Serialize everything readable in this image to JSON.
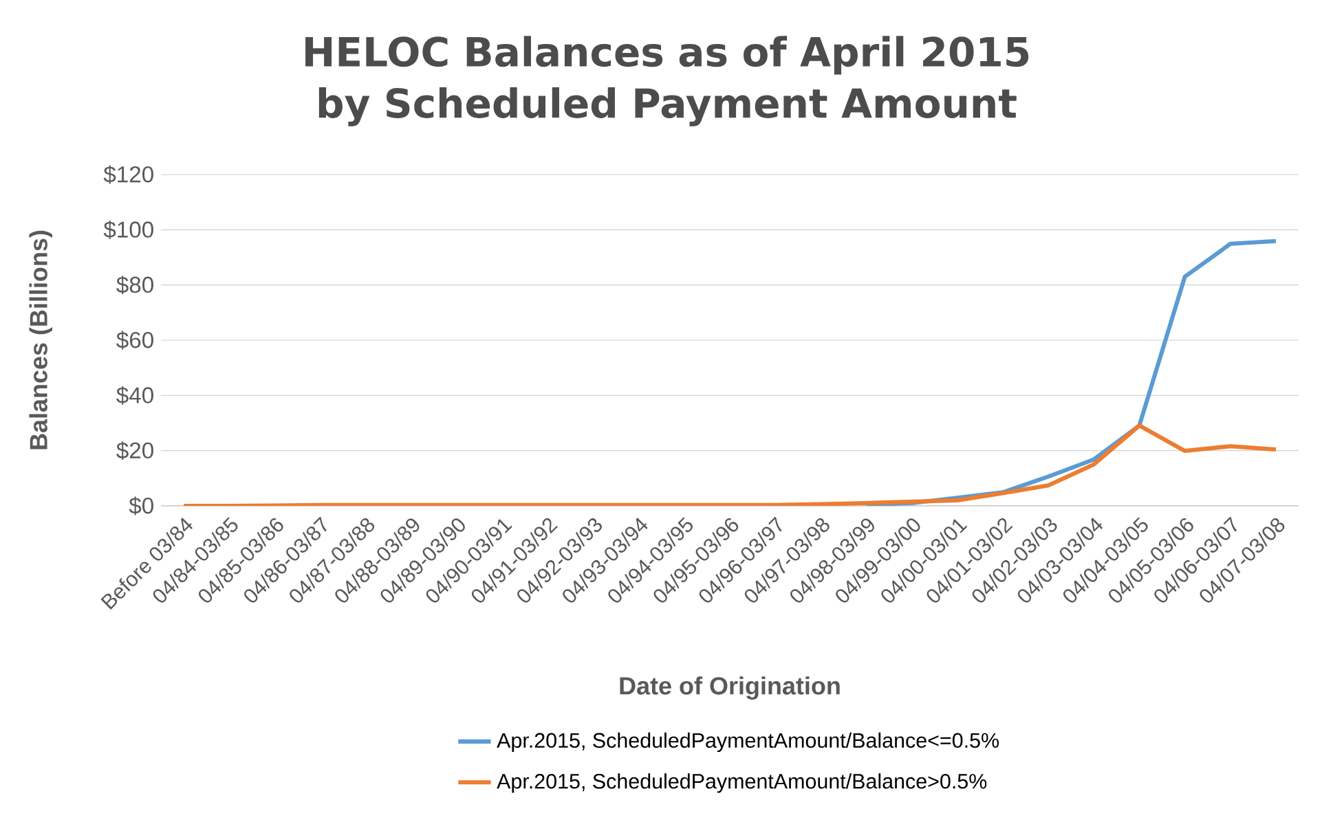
{
  "chart_data": {
    "type": "line",
    "title": "HELOC Balances as of April 2015\nby Scheduled Payment Amount",
    "xlabel": "Date of Origination",
    "ylabel": "Balances (Billions)",
    "categories": [
      "Before 03/84",
      "04/84-03/85",
      "04/85-03/86",
      "04/86-03/87",
      "04/87-03/88",
      "04/88-03/89",
      "04/89-03/90",
      "04/90-03/91",
      "04/91-03/92",
      "04/92-03/93",
      "04/93-03/94",
      "04/94-03/95",
      "04/95-03/96",
      "04/96-03/97",
      "04/97-03/98",
      "04/98-03/99",
      "04/99-03/00",
      "04/00-03/01",
      "04/01-03/02",
      "04/02-03/03",
      "04/03-03/04",
      "04/04-03/05",
      "04/05-03/06",
      "04/06-03/07",
      "04/07-03/08"
    ],
    "series": [
      {
        "name": "Apr.2015, ScheduledPaymentAmount/Balance<=0.5%",
        "color": "#5b9bd5",
        "values": [
          null,
          null,
          null,
          null,
          null,
          null,
          null,
          null,
          null,
          null,
          null,
          null,
          null,
          null,
          null,
          0.5,
          1.0,
          2.9,
          4.9,
          10.6,
          16.8,
          29.1,
          83.0,
          94.9,
          95.9
        ]
      },
      {
        "name": "Apr.2015, ScheduledPaymentAmount/Balance>0.5%",
        "color": "#ed7d31",
        "values": [
          0,
          0,
          0.1,
          0.3,
          0.3,
          0.3,
          0.3,
          0.3,
          0.3,
          0.3,
          0.3,
          0.3,
          0.3,
          0.3,
          0.6,
          1.0,
          1.5,
          2.0,
          4.6,
          7.4,
          15.0,
          29.1,
          19.9,
          21.6,
          20.4
        ]
      }
    ],
    "ylim": [
      0,
      120
    ],
    "yticks": [
      {
        "value": 0,
        "label": "$0"
      },
      {
        "value": 20,
        "label": "$20"
      },
      {
        "value": 40,
        "label": "$40"
      },
      {
        "value": 60,
        "label": "$60"
      },
      {
        "value": 80,
        "label": "$80"
      },
      {
        "value": 100,
        "label": "$100"
      },
      {
        "value": 120,
        "label": "$120"
      }
    ],
    "grid": "y",
    "legend": "bottom",
    "marker": "none",
    "line_style": "solid"
  }
}
